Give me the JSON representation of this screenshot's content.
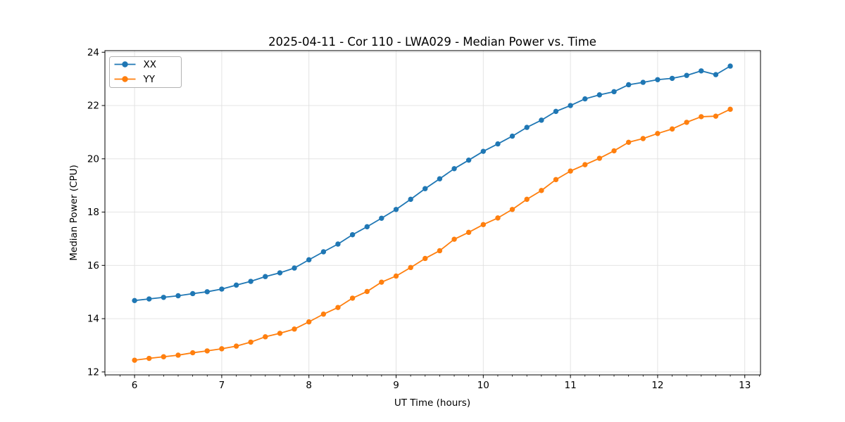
{
  "figure": {
    "title": "2025-04-11 - Cor 110 - LWA029 - Median Power vs. Time",
    "xlabel": "UT Time (hours)",
    "ylabel": "Median Power (CPU)"
  },
  "chart_data": {
    "type": "line",
    "title": "2025-04-11 - Cor 110 - LWA029 - Median Power vs. Time",
    "xlabel": "UT Time (hours)",
    "ylabel": "Median Power (CPU)",
    "xlim": [
      5.66,
      13.18
    ],
    "ylim": [
      11.89,
      24.06
    ],
    "x_ticks": [
      6,
      7,
      8,
      9,
      10,
      11,
      12,
      13
    ],
    "y_ticks": [
      12,
      14,
      16,
      18,
      20,
      22,
      24
    ],
    "x_minor_tick_step_hours": 0.1667,
    "grid": true,
    "legend_position": "upper left",
    "x": [
      6.0,
      6.167,
      6.333,
      6.5,
      6.667,
      6.833,
      7.0,
      7.167,
      7.333,
      7.5,
      7.667,
      7.833,
      8.0,
      8.167,
      8.333,
      8.5,
      8.667,
      8.833,
      9.0,
      9.167,
      9.333,
      9.5,
      9.667,
      9.833,
      10.0,
      10.167,
      10.333,
      10.5,
      10.667,
      10.833,
      11.0,
      11.167,
      11.333,
      11.5,
      11.667,
      11.833,
      12.0,
      12.167,
      12.333,
      12.5,
      12.667,
      12.833
    ],
    "series": [
      {
        "name": "XX",
        "color": "#1f77b4",
        "values": [
          14.68,
          14.74,
          14.8,
          14.86,
          14.94,
          15.01,
          15.11,
          15.26,
          15.4,
          15.58,
          15.72,
          15.9,
          16.21,
          16.51,
          16.8,
          17.15,
          17.45,
          17.77,
          18.1,
          18.48,
          18.88,
          19.25,
          19.63,
          19.95,
          20.28,
          20.56,
          20.85,
          21.18,
          21.45,
          21.78,
          22.0,
          22.25,
          22.4,
          22.52,
          22.78,
          22.87,
          22.97,
          23.02,
          23.13,
          23.3,
          23.16,
          23.48
        ]
      },
      {
        "name": "YY",
        "color": "#ff7f0e",
        "values": [
          12.44,
          12.51,
          12.57,
          12.63,
          12.72,
          12.79,
          12.87,
          12.97,
          13.12,
          13.32,
          13.45,
          13.61,
          13.88,
          14.17,
          14.42,
          14.77,
          15.02,
          15.37,
          15.6,
          15.92,
          16.26,
          16.55,
          16.98,
          17.24,
          17.53,
          17.78,
          18.1,
          18.48,
          18.81,
          19.22,
          19.54,
          19.78,
          20.02,
          20.3,
          20.62,
          20.76,
          20.95,
          21.12,
          21.37,
          21.58,
          21.6,
          21.86
        ]
      }
    ],
    "style": {
      "grid_color": "#e0e0e0",
      "spine_color": "#000000",
      "legend_border_color": "#b3b3b3",
      "background": "#ffffff"
    }
  }
}
